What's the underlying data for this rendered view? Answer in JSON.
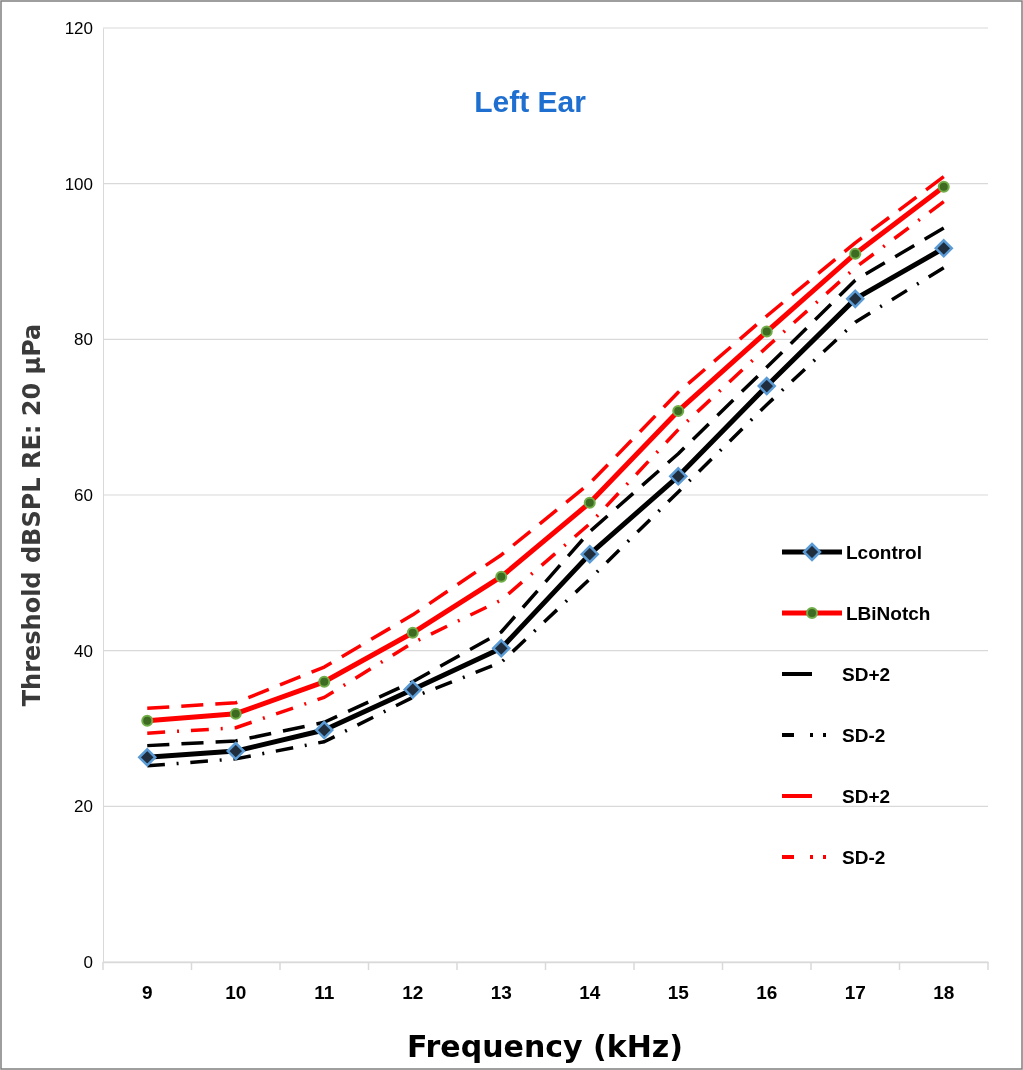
{
  "chart_data": {
    "type": "line",
    "title": "Left Ear",
    "xlabel": "Frequency (kHz)",
    "ylabel": "Threshold dBSPL RE: 20 µPa",
    "categories": [
      "9",
      "10",
      "11",
      "12",
      "13",
      "14",
      "15",
      "16",
      "17",
      "18"
    ],
    "ylim": [
      0,
      120
    ],
    "yticks": [
      0,
      20,
      40,
      60,
      80,
      100,
      120
    ],
    "grid": "y",
    "legend": "right",
    "series": [
      {
        "name": "Lcontrol",
        "color": "#000000",
        "marker": "diamond",
        "line_style": "solid",
        "values": [
          26.3,
          27.1,
          29.8,
          35.0,
          40.3,
          52.4,
          62.4,
          74.0,
          85.2,
          91.7
        ]
      },
      {
        "name": "LBiNotch",
        "color": "#ff0000",
        "marker": "circle",
        "line_style": "solid",
        "values": [
          31.0,
          31.9,
          36.0,
          42.3,
          49.5,
          59.0,
          70.8,
          81.0,
          91.0,
          99.6
        ]
      },
      {
        "name": "SD+2",
        "color": "#000000",
        "marker": "none",
        "line_style": "dashed",
        "values": [
          27.8,
          28.4,
          30.8,
          36.0,
          42.4,
          55.3,
          65.3,
          76.4,
          87.6,
          94.3
        ]
      },
      {
        "name": "SD-2",
        "color": "#000000",
        "marker": "none",
        "line_style": "dashdot",
        "values": [
          25.2,
          26.1,
          28.3,
          34.0,
          38.5,
          49.2,
          60.4,
          71.6,
          82.2,
          89.2
        ]
      },
      {
        "name": "SD+2",
        "color": "#ff0000",
        "marker": "none",
        "line_style": "dashed",
        "values": [
          32.6,
          33.3,
          37.9,
          44.6,
          52.3,
          61.5,
          73.2,
          83.0,
          92.4,
          100.9
        ]
      },
      {
        "name": "SD-2",
        "color": "#ff0000",
        "marker": "none",
        "line_style": "dashdot",
        "values": [
          29.4,
          30.1,
          34.0,
          41.0,
          46.5,
          56.3,
          68.4,
          79.0,
          89.2,
          97.7
        ]
      }
    ]
  }
}
